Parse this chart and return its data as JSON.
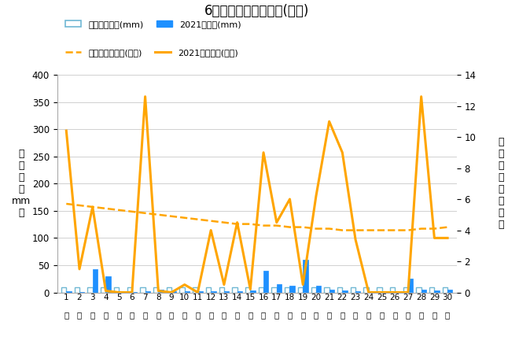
{
  "title": "6月降水量・日照時間(日別)",
  "days": [
    1,
    2,
    3,
    4,
    5,
    6,
    7,
    8,
    9,
    10,
    11,
    12,
    13,
    14,
    15,
    16,
    17,
    18,
    19,
    20,
    21,
    22,
    23,
    24,
    25,
    26,
    27,
    28,
    29,
    30
  ],
  "precip_avg": [
    10,
    10,
    10,
    10,
    10,
    10,
    10,
    10,
    10,
    10,
    10,
    10,
    10,
    10,
    10,
    10,
    10,
    10,
    10,
    10,
    10,
    10,
    10,
    10,
    10,
    10,
    10,
    10,
    10,
    10
  ],
  "precip_2021": [
    2,
    1,
    43,
    30,
    2,
    1,
    2,
    5,
    2,
    2,
    2,
    2,
    2,
    2,
    3,
    40,
    15,
    12,
    60,
    12,
    5,
    3,
    2,
    2,
    2,
    2,
    25,
    5,
    3,
    5
  ],
  "sunshine_avg_raw": [
    5.7,
    5.6,
    5.5,
    5.4,
    5.3,
    5.2,
    5.1,
    5.0,
    4.9,
    4.8,
    4.7,
    4.6,
    4.5,
    4.4,
    4.4,
    4.3,
    4.3,
    4.2,
    4.2,
    4.1,
    4.1,
    4.0,
    4.0,
    4.0,
    4.0,
    4.0,
    4.0,
    4.1,
    4.1,
    4.2
  ],
  "sunshine_2021": [
    10.4,
    1.5,
    5.5,
    0.1,
    0.0,
    0.0,
    12.6,
    0.1,
    0.0,
    0.5,
    0.0,
    4.0,
    0.5,
    4.5,
    0.2,
    9.0,
    4.5,
    6.0,
    0.5,
    6.2,
    11.0,
    9.0,
    3.4,
    0.0,
    0.0,
    0.0,
    0.0,
    12.6,
    3.5,
    3.5
  ],
  "ylabel_left": "降\n水\n量\n（\nmm\n）",
  "ylabel_right": "日\n照\n時\n間\n（\n時\n間\n）",
  "ylim_left": [
    0,
    400
  ],
  "ylim_right": [
    0,
    14
  ],
  "yticks_left": [
    0,
    50,
    100,
    150,
    200,
    250,
    300,
    350,
    400
  ],
  "yticks_right": [
    0,
    2,
    4,
    6,
    8,
    10,
    12,
    14
  ],
  "precip_avg_color": "#70B8D4",
  "precip_2021_color": "#1E90FF",
  "sunshine_avg_color": "#FFA500",
  "sunshine_2021_color": "#FFA500",
  "background_color": "#ffffff",
  "legend1_label1": "降水量平年値(mm)",
  "legend1_label2": "2021降水量(mm)",
  "legend2_label1": "日照時間平年値(時間)",
  "legend2_label2": "2021日照時間(時間)"
}
